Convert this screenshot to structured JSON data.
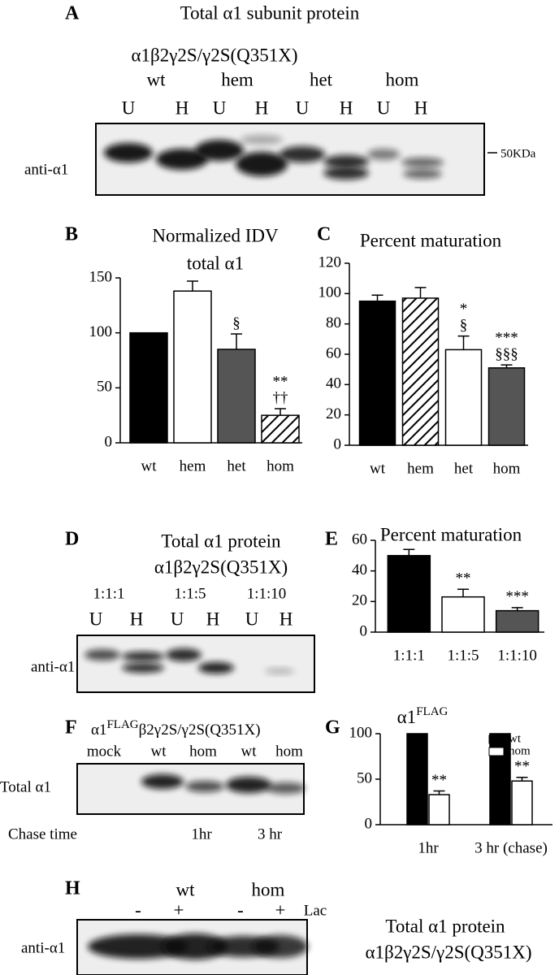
{
  "blots": [
    {
      "panel": "A",
      "title": "Total α1 subunit protein",
      "subtitle": "α1β2γ2S/γ2S(Q351X)",
      "groups": [
        "wt",
        "hem",
        "het",
        "hom"
      ],
      "lanes": [
        "U",
        "H",
        "U",
        "H",
        "U",
        "H",
        "U",
        "H"
      ],
      "band_label": "anti-α1",
      "marker": "50KDa"
    },
    {
      "panel": "D",
      "title": "Total α1 protein",
      "subtitle": "α1β2γ2S(Q351X)",
      "groups": [
        "1:1:1",
        "1:1:5",
        "1:1:10"
      ],
      "lanes": [
        "U",
        "H",
        "U",
        "H",
        "U",
        "H"
      ],
      "band_label": "anti-α1"
    },
    {
      "panel": "F",
      "title_parts": [
        "α1",
        "FLAG",
        "β2γ2S/γ2S(Q351X)"
      ],
      "lanes": [
        "mock",
        "wt",
        "hom",
        "wt",
        "hom"
      ],
      "band_label": "Total α1",
      "chase_label": "Chase time",
      "chase_times": [
        "1hr",
        "3 hr"
      ]
    },
    {
      "panel": "H",
      "groups": [
        "wt",
        "hom"
      ],
      "lanes": [
        "-",
        "+",
        "-",
        "+"
      ],
      "treatment": "Lac",
      "band_label": "anti-α1",
      "caption": "Total α1 protein",
      "caption2": "α1β2γ2S/γ2S(Q351X)"
    }
  ],
  "chart_data": [
    {
      "type": "bar",
      "panel": "B",
      "title": "Normalized IDV",
      "subtitle": "total α1",
      "categories": [
        "wt",
        "hem",
        "het",
        "hom"
      ],
      "values": [
        100,
        138,
        85,
        25
      ],
      "errors": [
        null,
        9,
        14,
        6
      ],
      "fills": [
        "#000000",
        "#ffffff",
        "#555555",
        "#ffffff"
      ],
      "hatch": [
        false,
        false,
        false,
        true
      ],
      "bar_labels": [
        [],
        [],
        [
          "§"
        ],
        [
          "**",
          "††"
        ]
      ],
      "ylim": [
        0,
        150
      ],
      "yticks": [
        0,
        50,
        100,
        150
      ]
    },
    {
      "type": "bar",
      "panel": "C",
      "title": "Percent maturation",
      "categories": [
        "wt",
        "hem",
        "het",
        "hom"
      ],
      "values": [
        95,
        97,
        63,
        51
      ],
      "errors": [
        4,
        7,
        9,
        2
      ],
      "fills": [
        "#000000",
        "#ffffff",
        "#ffffff",
        "#555555"
      ],
      "hatch": [
        false,
        true,
        false,
        false
      ],
      "bar_labels": [
        [],
        [],
        [
          "*",
          "§"
        ],
        [
          "***",
          "§§§"
        ]
      ],
      "ylim": [
        0,
        120
      ],
      "yticks": [
        0,
        20,
        40,
        60,
        80,
        100,
        120
      ]
    },
    {
      "type": "bar",
      "panel": "E",
      "title": "Percent maturation",
      "categories": [
        "1:1:1",
        "1:1:5",
        "1:1:10"
      ],
      "values": [
        50,
        23,
        14
      ],
      "errors": [
        4,
        5,
        2
      ],
      "fills": [
        "#000000",
        "#ffffff",
        "#555555"
      ],
      "hatch": [
        false,
        false,
        false
      ],
      "bar_labels": [
        [],
        [
          "**"
        ],
        [
          "***"
        ]
      ],
      "ylim": [
        0,
        60
      ],
      "yticks": [
        0,
        20,
        40,
        60
      ]
    },
    {
      "type": "grouped_bar",
      "panel": "G",
      "title_parts": [
        "α1",
        "FLAG"
      ],
      "categories": [
        "1hr",
        "3 hr (chase)"
      ],
      "series": [
        {
          "name": "wt",
          "color": "#000000",
          "values": [
            100,
            100
          ],
          "errors": [
            null,
            null
          ],
          "bar_labels": [
            [],
            []
          ]
        },
        {
          "name": "hom",
          "color": "#ffffff",
          "values": [
            33,
            48
          ],
          "errors": [
            4,
            4
          ],
          "bar_labels": [
            [
              "**"
            ],
            [
              "**"
            ]
          ]
        }
      ],
      "ylim": [
        0,
        100
      ],
      "yticks": [
        0,
        50,
        100
      ],
      "legend": "upper right"
    }
  ]
}
